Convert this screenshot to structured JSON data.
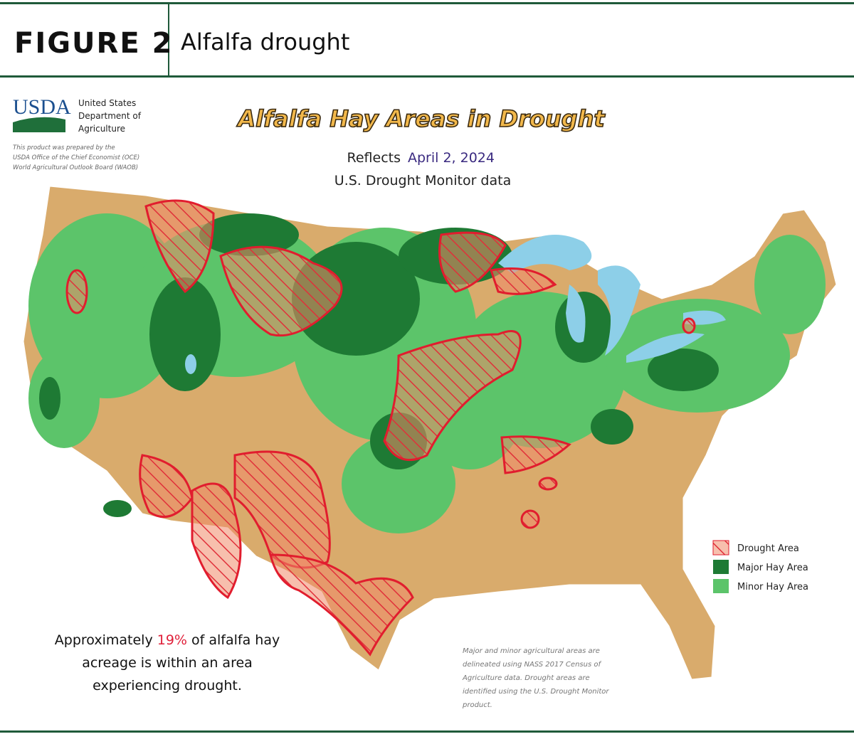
{
  "header": {
    "figure": "FIGURE 2",
    "title": "Alfalfa drought"
  },
  "agency": {
    "logo": "USDA",
    "name": [
      "United States",
      "Department of",
      "Agriculture"
    ],
    "credit": [
      "This product was prepared by the",
      "USDA Office of the Chief Economist (OCE)",
      "World Agricultural Outlook Board (WAOB)"
    ]
  },
  "map": {
    "title": "Alfalfa Hay Areas in Drought",
    "subtitle_prefix": "Reflects",
    "date": "April 2, 2024",
    "subtitle": "U.S. Drought Monitor data"
  },
  "legend": [
    "Drought Area",
    "Major Hay Area",
    "Minor Hay Area"
  ],
  "summary": {
    "before": "Approximately",
    "share": "19%",
    "after": "of alfalfa hay",
    "line2": "acreage is within an area",
    "line3": "experiencing drought."
  },
  "note": [
    "Major and minor agricultural areas are",
    "delineated using NASS 2017 Census of",
    "Agriculture data.  Drought areas are",
    "identified using the U.S. Drought Monitor",
    "product."
  ]
}
